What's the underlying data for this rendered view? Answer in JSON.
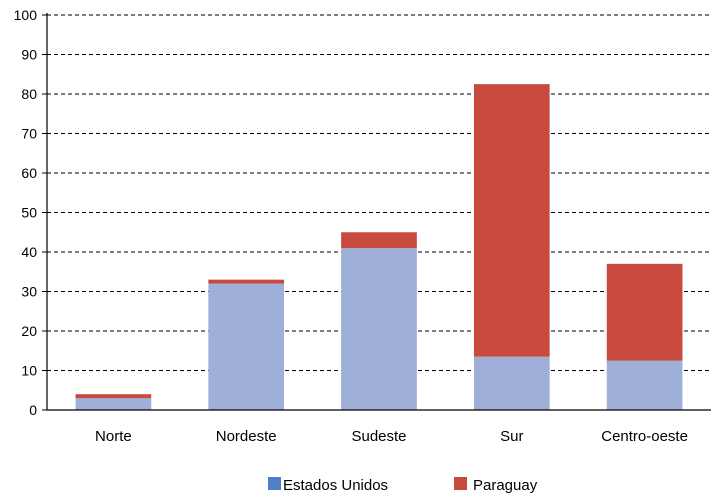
{
  "chart_data": {
    "type": "bar",
    "stacked": true,
    "categories": [
      "Norte",
      "Nordeste",
      "Sudeste",
      "Sur",
      "Centro-oeste"
    ],
    "series": [
      {
        "name": "Estados Unidos",
        "color": "#9eb0d8",
        "legend_color": "#4f7fc6",
        "values": [
          3,
          32,
          41,
          13.5,
          12.5
        ]
      },
      {
        "name": "Paraguay",
        "color": "#c84a3f",
        "legend_color": "#c84a3f",
        "values": [
          1,
          1,
          4,
          69,
          24.5
        ]
      }
    ],
    "ylim": [
      0,
      100
    ],
    "yticks": [
      0,
      10,
      20,
      30,
      40,
      50,
      60,
      70,
      80,
      90,
      100
    ],
    "grid": true,
    "legend_position": "bottom"
  }
}
